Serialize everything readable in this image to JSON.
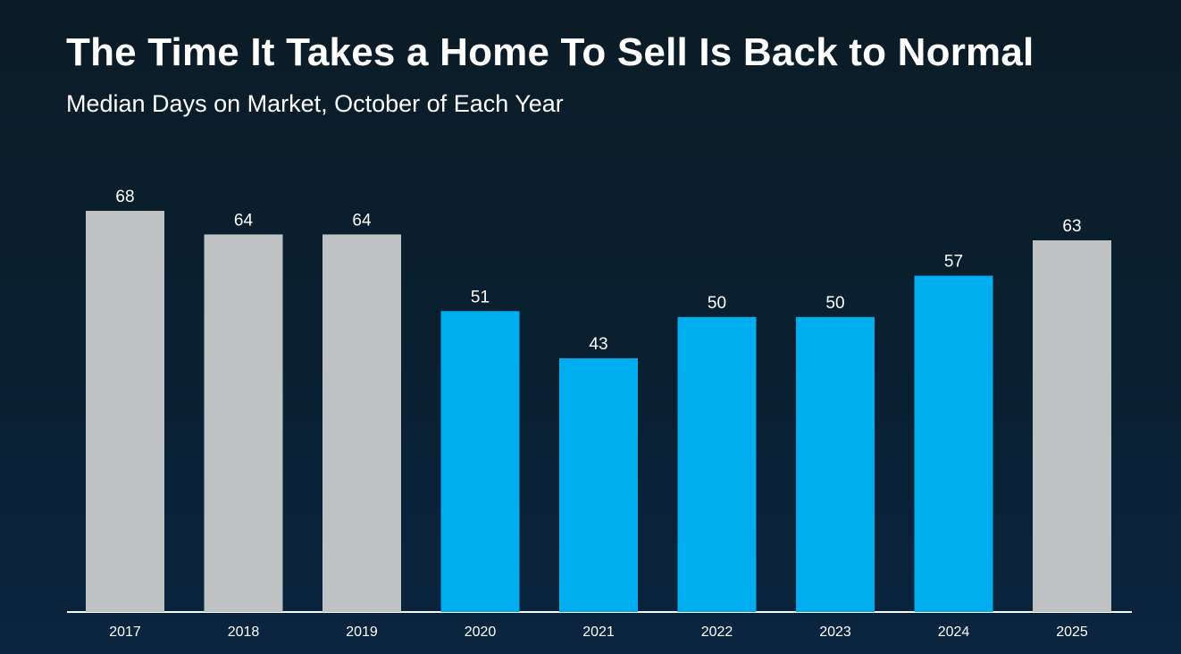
{
  "chart_data": {
    "type": "bar",
    "title": "The Time It Takes a Home To Sell Is Back to Normal",
    "subtitle": "Median Days on Market, October of Each Year",
    "categories": [
      "2017",
      "2018",
      "2019",
      "2020",
      "2021",
      "2022",
      "2023",
      "2024",
      "2025"
    ],
    "values": [
      68,
      64,
      64,
      51,
      43,
      50,
      50,
      57,
      63
    ],
    "highlighted": [
      false,
      false,
      false,
      true,
      true,
      true,
      true,
      true,
      false
    ],
    "colors": {
      "default": "#bec2c3",
      "highlight": "#00aeef",
      "axis": "#ffffff",
      "label": "#ffffff"
    },
    "xlabel": "",
    "ylabel": "",
    "ylim": [
      0,
      68
    ],
    "grid": false
  }
}
